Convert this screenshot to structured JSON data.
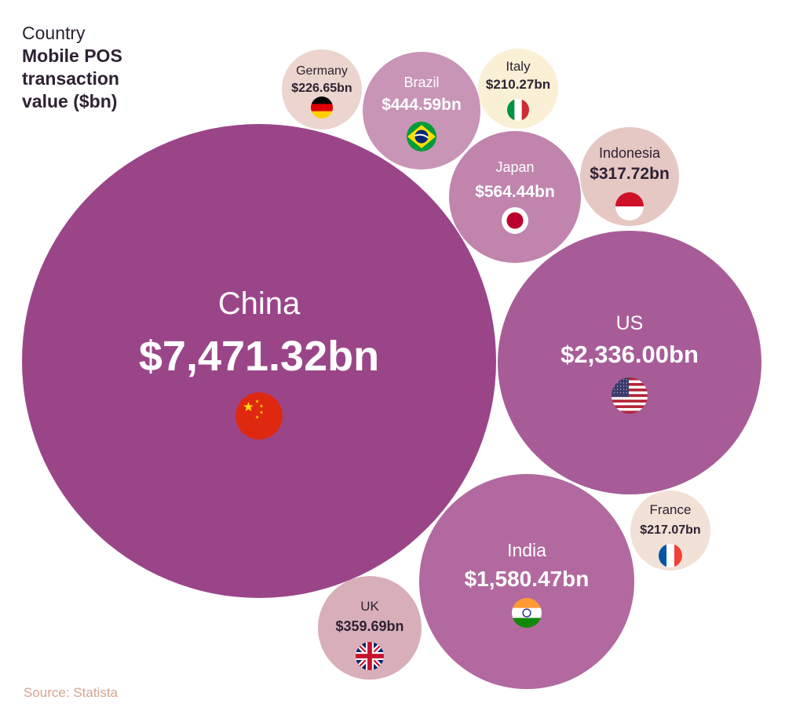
{
  "legend": {
    "subtitle": "Country",
    "title": "Mobile POS transaction value ($bn)"
  },
  "source": "Source: Statista",
  "chart_data": {
    "type": "bubble",
    "title": "Mobile POS transaction value ($bn)",
    "unit": "$bn",
    "series": [
      {
        "name": "China",
        "label": "$7,471.32bn",
        "value": 7471.32,
        "color": "#9b4589",
        "flag": "china-flag"
      },
      {
        "name": "US",
        "label": "$2,336.00bn",
        "value": 2336.0,
        "color": "#a75c97",
        "flag": "us-flag"
      },
      {
        "name": "India",
        "label": "$1,580.47bn",
        "value": 1580.47,
        "color": "#b2699f",
        "flag": "india-flag"
      },
      {
        "name": "Japan",
        "label": "$564.44bn",
        "value": 564.44,
        "color": "#c084ad",
        "flag": "japan-flag"
      },
      {
        "name": "Brazil",
        "label": "$444.59bn",
        "value": 444.59,
        "color": "#c895b6",
        "flag": "brazil-flag"
      },
      {
        "name": "UK",
        "label": "$359.69bn",
        "value": 359.69,
        "color": "#d8afb9",
        "flag": "uk-flag"
      },
      {
        "name": "Indonesia",
        "label": "$317.72bn",
        "value": 317.72,
        "color": "#e5c7c4",
        "flag": "indonesia-flag"
      },
      {
        "name": "Germany",
        "label": "$226.65bn",
        "value": 226.65,
        "color": "#ebd5ce",
        "flag": "germany-flag"
      },
      {
        "name": "France",
        "label": "$217.07bn",
        "value": 217.07,
        "color": "#f1e1d6",
        "flag": "france-flag"
      },
      {
        "name": "Italy",
        "label": "$210.27bn",
        "value": 210.27,
        "color": "#faf0d6",
        "flag": "italy-flag"
      }
    ]
  }
}
